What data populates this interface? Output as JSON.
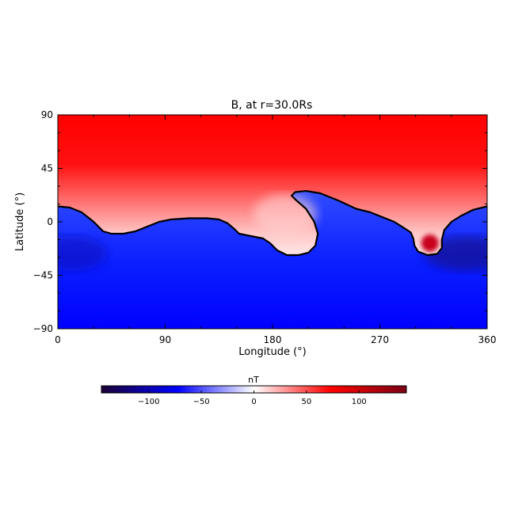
{
  "chart_data": {
    "type": "heatmap",
    "title": "B, at r=30.0Rs",
    "xlabel": "Longitude (°)",
    "ylabel": "Latitude (°)",
    "xlim": [
      0,
      360
    ],
    "ylim": [
      -90,
      90
    ],
    "x_ticks": [
      0,
      90,
      180,
      270,
      360
    ],
    "y_ticks": [
      -90,
      -45,
      0,
      45,
      90
    ],
    "colorbar": {
      "label": "nT",
      "range": [
        -145,
        145
      ],
      "ticks": [
        -100,
        -50,
        0,
        50,
        100
      ],
      "colors": [
        "#1a0033",
        "#0000ff",
        "#ffffff",
        "#ff0000",
        "#7a0014"
      ]
    },
    "current_sheet": [
      [
        0,
        13
      ],
      [
        10,
        12
      ],
      [
        20,
        8
      ],
      [
        30,
        0
      ],
      [
        38,
        -8
      ],
      [
        45,
        -10
      ],
      [
        55,
        -10
      ],
      [
        65,
        -8
      ],
      [
        75,
        -4
      ],
      [
        85,
        0
      ],
      [
        95,
        2
      ],
      [
        110,
        3
      ],
      [
        125,
        3
      ],
      [
        135,
        2
      ],
      [
        142,
        -1
      ],
      [
        148,
        -6
      ],
      [
        152,
        -10
      ],
      [
        162,
        -12
      ],
      [
        172,
        -14
      ],
      [
        178,
        -18
      ],
      [
        184,
        -24
      ],
      [
        192,
        -28
      ],
      [
        202,
        -28
      ],
      [
        210,
        -26
      ],
      [
        216,
        -20
      ],
      [
        218,
        -10
      ],
      [
        215,
        0
      ],
      [
        208,
        11
      ],
      [
        200,
        18
      ],
      [
        196,
        22
      ],
      [
        199,
        25
      ],
      [
        208,
        26
      ],
      [
        220,
        24
      ],
      [
        235,
        18
      ],
      [
        250,
        11
      ],
      [
        262,
        8
      ],
      [
        272,
        4
      ],
      [
        282,
        0
      ],
      [
        290,
        -5
      ],
      [
        296,
        -9
      ],
      [
        298,
        -14
      ],
      [
        299,
        -20
      ],
      [
        302,
        -25
      ],
      [
        310,
        -28
      ],
      [
        318,
        -27
      ],
      [
        322,
        -22
      ],
      [
        322,
        -15
      ],
      [
        324,
        -7
      ],
      [
        330,
        0
      ],
      [
        338,
        5
      ],
      [
        348,
        10
      ],
      [
        360,
        13
      ]
    ],
    "hot_spot": {
      "lon": 312,
      "lat": -18,
      "value": 130
    }
  }
}
